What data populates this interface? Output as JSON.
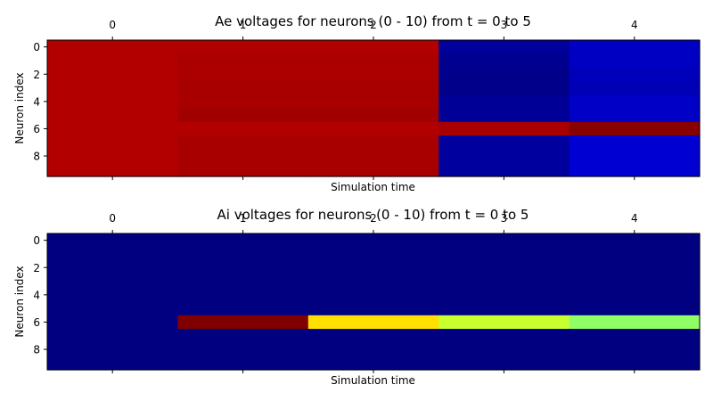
{
  "chart_data": [
    {
      "type": "heatmap",
      "title": "Ae voltages for neurons (0 - 10) from t = 0 to 5",
      "xlabel": "Simulation time",
      "ylabel": "Neuron index",
      "x_ticks": [
        "0",
        "1",
        "2",
        "3",
        "4"
      ],
      "y_ticks": [
        "0",
        "2",
        "4",
        "6",
        "8"
      ],
      "x_tick_position": "top",
      "colormap": "jet",
      "columns": [
        0,
        1,
        2,
        3,
        4
      ],
      "rows": [
        0,
        1,
        2,
        3,
        4,
        5,
        6,
        7,
        8,
        9
      ],
      "cell_colors": [
        [
          "#b20000",
          "#b20000",
          "#b20000",
          "#00009a",
          "#0000c2"
        ],
        [
          "#b20000",
          "#aa0000",
          "#aa0000",
          "#000090",
          "#0000c2"
        ],
        [
          "#b20000",
          "#aa0000",
          "#aa0000",
          "#00008a",
          "#0000bb"
        ],
        [
          "#b20000",
          "#a80000",
          "#a80000",
          "#000088",
          "#0000b6"
        ],
        [
          "#b20000",
          "#a80000",
          "#a80000",
          "#000096",
          "#0000c6"
        ],
        [
          "#b20000",
          "#a00000",
          "#a00000",
          "#000096",
          "#0000c6"
        ],
        [
          "#b20000",
          "#b20000",
          "#b20000",
          "#a80000",
          "#880000"
        ],
        [
          "#b20000",
          "#a80000",
          "#a80000",
          "#00009e",
          "#0000d2"
        ],
        [
          "#b20000",
          "#a80000",
          "#a80000",
          "#00009e",
          "#0000d2"
        ],
        [
          "#b20000",
          "#a80000",
          "#a80000",
          "#00009e",
          "#0000d2"
        ]
      ]
    },
    {
      "type": "heatmap",
      "title": "Ai voltages for neurons (0 - 10) from t = 0 to 5",
      "xlabel": "Simulation time",
      "ylabel": "Neuron index",
      "x_ticks": [
        "0",
        "1",
        "2",
        "3",
        "4"
      ],
      "y_ticks": [
        "0",
        "2",
        "4",
        "6",
        "8"
      ],
      "x_tick_position": "top",
      "colormap": "jet",
      "columns": [
        0,
        1,
        2,
        3,
        4
      ],
      "rows": [
        0,
        1,
        2,
        3,
        4,
        5,
        6,
        7,
        8,
        9
      ],
      "cell_colors": [
        [
          "#000080",
          "#000080",
          "#000080",
          "#000080",
          "#000080"
        ],
        [
          "#000080",
          "#000080",
          "#000080",
          "#000080",
          "#000080"
        ],
        [
          "#000080",
          "#000080",
          "#000080",
          "#000080",
          "#000080"
        ],
        [
          "#000080",
          "#000080",
          "#000080",
          "#000080",
          "#000080"
        ],
        [
          "#000080",
          "#000080",
          "#000080",
          "#000080",
          "#000080"
        ],
        [
          "#000080",
          "#000080",
          "#000080",
          "#000080",
          "#000080"
        ],
        [
          "#000080",
          "#800000",
          "#ffe000",
          "#c8ff2e",
          "#90ff66"
        ],
        [
          "#000080",
          "#000080",
          "#000080",
          "#000080",
          "#000080"
        ],
        [
          "#000080",
          "#000080",
          "#000080",
          "#000080",
          "#000080"
        ],
        [
          "#000080",
          "#000080",
          "#000080",
          "#000080",
          "#000080"
        ]
      ]
    }
  ]
}
